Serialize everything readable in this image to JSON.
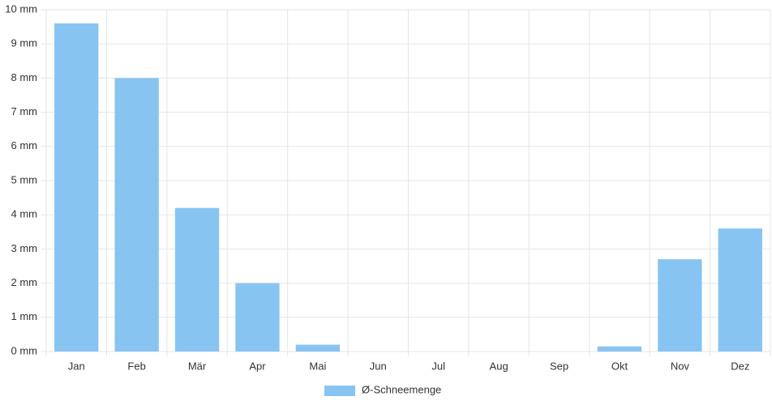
{
  "chart_data": {
    "type": "bar",
    "categories": [
      "Jan",
      "Feb",
      "Mär",
      "Apr",
      "Mai",
      "Jun",
      "Jul",
      "Aug",
      "Sep",
      "Okt",
      "Nov",
      "Dez"
    ],
    "series": [
      {
        "name": "Ø-Schneemenge",
        "color": "#88c4f1",
        "values": [
          9.6,
          8.0,
          4.2,
          2.0,
          0.2,
          0,
          0,
          0,
          0,
          0.15,
          2.7,
          3.6
        ]
      }
    ],
    "ylim": [
      0,
      10
    ],
    "yticks": [
      {
        "value": 0,
        "label": "0 mm"
      },
      {
        "value": 1,
        "label": "1 mm"
      },
      {
        "value": 2,
        "label": "2 mm"
      },
      {
        "value": 3,
        "label": "3 mm"
      },
      {
        "value": 4,
        "label": "4 mm"
      },
      {
        "value": 5,
        "label": "5 mm"
      },
      {
        "value": 6,
        "label": "6 mm"
      },
      {
        "value": 7,
        "label": "7 mm"
      },
      {
        "value": 8,
        "label": "8 mm"
      },
      {
        "value": 9,
        "label": "9 mm"
      },
      {
        "value": 10,
        "label": "10 mm"
      }
    ],
    "grid": true,
    "legend": "bottom"
  }
}
